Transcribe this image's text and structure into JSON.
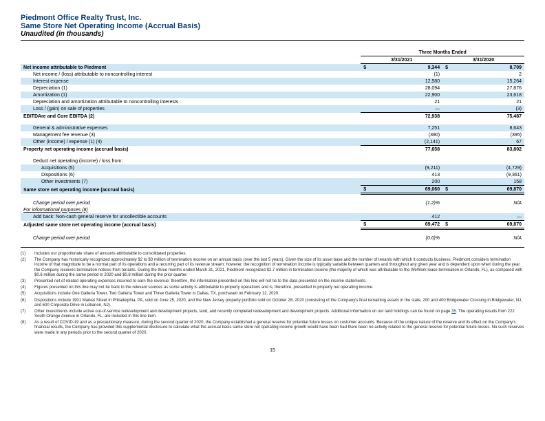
{
  "header": {
    "company": "Piedmont Office Realty Trust, Inc.",
    "report": "Same Store Net Operating Income (Accrual Basis)",
    "subtitle": "Unaudited (in thousands)"
  },
  "periods": {
    "span_label": "Three Months Ended",
    "col1": "3/31/2021",
    "col2": "3/31/2020"
  },
  "rows": [
    {
      "k": "hl bold",
      "label": "Net income attributable to Piedmont",
      "s1": "$",
      "v1": "9,344",
      "s2": "$",
      "v2": "8,709"
    },
    {
      "k": "i1",
      "label": "Net income / (loss) attributable to noncontrolling interest",
      "v1": "(1)",
      "v2": "2"
    },
    {
      "k": "hl i1",
      "label": "Interest expense",
      "v1": "12,580",
      "v2": "15,264"
    },
    {
      "k": "i1",
      "label": "Depreciation (1)",
      "v1": "28,094",
      "v2": "27,876"
    },
    {
      "k": "hl i1",
      "label": "Amortization (1)",
      "v1": "22,900",
      "v2": "23,618"
    },
    {
      "k": "i1",
      "label": "Depreciation and amortization attributable to noncontrolling interests",
      "v1": "21",
      "v2": "21"
    },
    {
      "k": "hl i1",
      "label": "Loss / (gain) on sale of properties",
      "v1": "—",
      "v2": "(3)"
    },
    {
      "k": "bold subtotal-top",
      "label": "EBITDAre and Core EBITDA (2)",
      "v1": "72,938",
      "v2": "75,487"
    },
    {
      "k": "hl i1",
      "label": "General & administrative expenses",
      "v1": "7,251",
      "v2": "8,643"
    },
    {
      "k": "i1",
      "label": "Management fee revenue (3)",
      "v1": "(390)",
      "v2": "(395)"
    },
    {
      "k": "hl i1",
      "label": "Other (income) / expense (1) (4)",
      "v1": "(2,141)",
      "v2": "67"
    },
    {
      "k": "bold subtotal-top",
      "label": "Property net operating income (accrual basis)",
      "v1": "77,658",
      "v2": "83,802"
    },
    {
      "k": "i1",
      "label": "Deduct net operating (income) / loss from:",
      "v1": "",
      "v2": ""
    },
    {
      "k": "hl i2",
      "label": "Acquisitions (5)",
      "v1": "(9,211)",
      "v2": "(4,729)"
    },
    {
      "k": "i2",
      "label": "Dispositions (6)",
      "v1": "413",
      "v2": "(9,361)"
    },
    {
      "k": "hl i2",
      "label": "Other investments (7)",
      "v1": "200",
      "v2": "158"
    },
    {
      "k": "hl bold total-dbl",
      "label": "Same store net operating income (accrual basis)",
      "s1": "$",
      "v1": "69,060",
      "s2": "$",
      "v2": "69,870"
    },
    {
      "k": "ital i1",
      "label": "Change period over period",
      "v1": "(1.2)%",
      "v2": "N/A"
    },
    {
      "k": "ital und",
      "label": "For informational purposes (8)",
      "v1": "",
      "v2": ""
    },
    {
      "k": "hl i1",
      "label": "Add back: Non-cash general reserve for uncollectible accounts",
      "v1": "412",
      "v2": "—"
    },
    {
      "k": "bold total-dbl",
      "label": "Adjusted same store net operating income (accrual basis)",
      "s1": "$",
      "v1": "69,472",
      "s2": "$",
      "v2": "69,870"
    },
    {
      "k": "ital i1",
      "label": "Change period over period",
      "v1": "(0.6)%",
      "v2": "N/A"
    }
  ],
  "footnotes": [
    {
      "n": "(1)",
      "t": "Includes our proportionate share of amounts attributable to consolidated properties."
    },
    {
      "n": "(2)",
      "t": "The Company has historically recognized approximately $2 to $3 million of termination income on an annual basis (over the last 5 years).  Given the size of its asset base and the number of tenants with which it conducts business, Piedmont considers termination income of that magnitude to be a normal part of its operations and a recurring part of its revenue stream; however, the recognition of termination income is typically variable between quarters and throughout any given year and is dependent upon when during the year the Company receives termination notices from tenants.  During the three months ended March 31, 2021, Piedmont recognized $2.7 million in termination income (the majority of which was attributable to the WeWork lease termination in Orlando, FL), as compared with $0.6 million during the same period in 2020 and $0.8 million during the prior quarter."
    },
    {
      "n": "(3)",
      "t": "Presented net of related operating expenses incurred to earn the revenue; therefore, the information presented on this line will not tie to the data presented on the income statements."
    },
    {
      "n": "(4)",
      "t": "Figures presented on this line may not tie back to the relevant sources as some activity is attributable to property operations and is, therefore, presented in property net operating income."
    },
    {
      "n": "(5)",
      "t": "Acquisitions include One Galleria Tower, Two Galleria Tower and Three Galleria Tower in Dallas, TX, purchased on February 12, 2020."
    },
    {
      "n": "(6)",
      "t": "Dispositions include 1901 Market Street in Philadelphia, PA, sold on June 25, 2020, and the New Jersey property portfolio sold on October 28, 2020 (consisting of the Company's final remaining assets in the state, 200 and 400 Bridgewater Crossing in Bridgewater, NJ, and 600 Corporate Drive in Lebanon, NJ)."
    },
    {
      "n": "(7)",
      "t": "Other investments include active out-of-service redevelopment and development projects, land, and recently completed redevelopment and development projects.  Additional information on our land holdings can be found on page ",
      "link": "35",
      "t2": ".  The operating results from 222 South Orange Avenue in Orlando, FL, are included in this line item."
    },
    {
      "n": "(8)",
      "t": "As a result of COVID-19 and as a precautionary measure, during the second quarter of 2020, the Company established a general reserve for potential future losses on customer accounts.  Because of the unique nature of the reserve and its effect on the Company's financial results, the Company has provided this supplemental disclosure to calculate what the accrual basis same store net operating income growth would have been had there been no activity related to the general reserve for potential future losses.  No such reserves were made in any periods prior to the second quarter of 2020."
    }
  ],
  "page_number": "15",
  "colors": {
    "brand": "#0a3b73",
    "highlight": "#cfe7f5"
  }
}
